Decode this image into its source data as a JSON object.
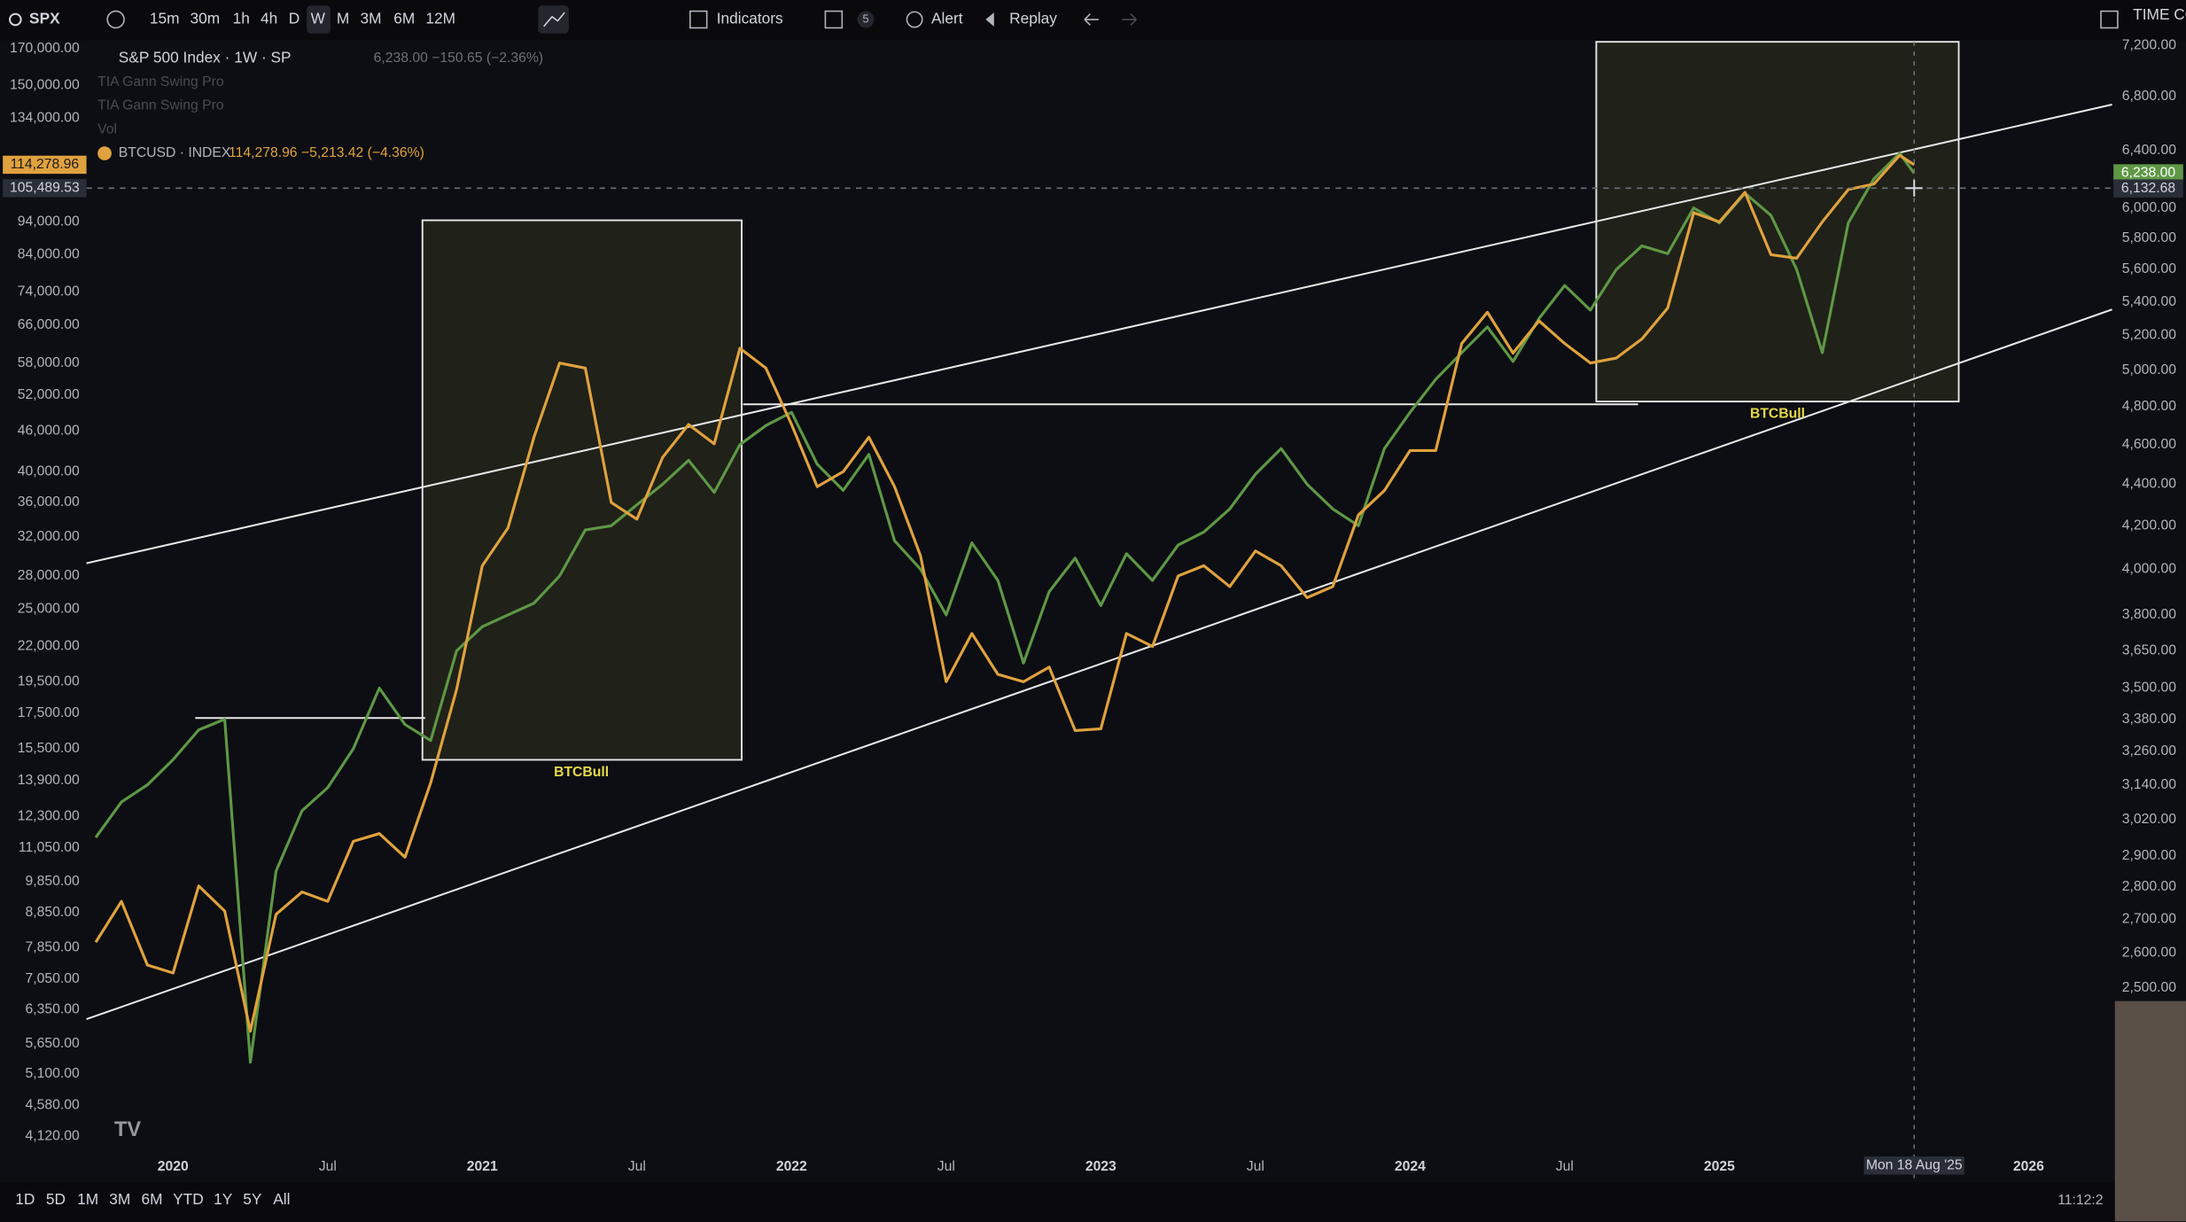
{
  "toolbar": {
    "symbol": "SPX",
    "intervals": [
      "15m",
      "30m",
      "1h",
      "4h",
      "D",
      "W",
      "M",
      "3M",
      "6M",
      "12M"
    ],
    "indicators": "Indicators",
    "badge": "5",
    "alert": "Alert",
    "replay": "Replay",
    "right_label": "TIME CO"
  },
  "legend": {
    "main_values": "6,238.00  −150.65 (−2.36%)",
    "indicators": [
      "TIA Gann Swing Pro",
      "TIA Gann Swing Pro",
      "Vol"
    ],
    "compare_values": "114,278.96  −5,213.42 (−4.36%)"
  },
  "chart_data": {
    "type": "line",
    "log_scale": true,
    "grid": false,
    "x": [
      2019.75,
      2019.833,
      2019.917,
      2020.0,
      2020.083,
      2020.167,
      2020.25,
      2020.333,
      2020.417,
      2020.5,
      2020.583,
      2020.667,
      2020.75,
      2020.833,
      2020.917,
      2021.0,
      2021.083,
      2021.167,
      2021.25,
      2021.333,
      2021.417,
      2021.5,
      2021.583,
      2021.667,
      2021.75,
      2021.833,
      2021.917,
      2022.0,
      2022.083,
      2022.167,
      2022.25,
      2022.333,
      2022.417,
      2022.5,
      2022.583,
      2022.667,
      2022.75,
      2022.833,
      2022.917,
      2023.0,
      2023.083,
      2023.167,
      2023.25,
      2023.333,
      2023.417,
      2023.5,
      2023.583,
      2023.667,
      2023.75,
      2023.833,
      2023.917,
      2024.0,
      2024.083,
      2024.167,
      2024.25,
      2024.333,
      2024.417,
      2024.5,
      2024.583,
      2024.667,
      2024.75,
      2024.833,
      2024.917,
      2025.0,
      2025.083,
      2025.167,
      2025.25,
      2025.333,
      2025.417,
      2025.5,
      2025.583,
      2025.63
    ],
    "xlim": [
      2019.72,
      2026.27
    ],
    "xticks": [
      2020,
      {
        "value": 2020.5,
        "label": "Jul"
      },
      2021,
      {
        "value": 2021.5,
        "label": "Jul"
      },
      2022,
      {
        "value": 2022.5,
        "label": "Jul"
      },
      2023,
      {
        "value": 2023.5,
        "label": "Jul"
      },
      2024,
      {
        "value": 2024.5,
        "label": "Jul"
      },
      2025,
      2026
    ],
    "ylim": [
      3520,
      174000
    ],
    "yticks": [
      {
        "value": 170000,
        "label": "170,000.00"
      },
      {
        "value": 150000,
        "label": "150,000.00"
      },
      {
        "value": 134000,
        "label": "134,000.00"
      },
      {
        "value": 94000,
        "label": "94,000.00"
      },
      {
        "value": 84000,
        "label": "84,000.00"
      },
      {
        "value": 74000,
        "label": "74,000.00"
      },
      {
        "value": 66000,
        "label": "66,000.00"
      },
      {
        "value": 58000,
        "label": "58,000.00"
      },
      {
        "value": 52000,
        "label": "52,000.00"
      },
      {
        "value": 46000,
        "label": "46,000.00"
      },
      {
        "value": 40000,
        "label": "40,000.00"
      },
      {
        "value": 36000,
        "label": "36,000.00"
      },
      {
        "value": 32000,
        "label": "32,000.00"
      },
      {
        "value": 28000,
        "label": "28,000.00"
      },
      {
        "value": 25000,
        "label": "25,000.00"
      },
      {
        "value": 22000,
        "label": "22,000.00"
      },
      {
        "value": 19500,
        "label": "19,500.00"
      },
      {
        "value": 17500,
        "label": "17,500.00"
      },
      {
        "value": 15500,
        "label": "15,500.00"
      },
      {
        "value": 13900,
        "label": "13,900.00"
      },
      {
        "value": 12300,
        "label": "12,300.00"
      },
      {
        "value": 11050,
        "label": "11,050.00"
      },
      {
        "value": 9850,
        "label": "9,850.00"
      },
      {
        "value": 8850,
        "label": "8,850.00"
      },
      {
        "value": 7850,
        "label": "7,850.00"
      },
      {
        "value": 7050,
        "label": "7,050.00"
      },
      {
        "value": 6350,
        "label": "6,350.00"
      },
      {
        "value": 5650,
        "label": "5,650.00"
      },
      {
        "value": 5100,
        "label": "5,100.00"
      },
      {
        "value": 4580,
        "label": "4,580.00"
      },
      {
        "value": 4120,
        "label": "4,120.00"
      }
    ],
    "y2lim": [
      2010,
      7230
    ],
    "y2ticks": [
      {
        "value": 7200,
        "label": "7,200.00"
      },
      {
        "value": 6800,
        "label": "6,800.00"
      },
      {
        "value": 6400,
        "label": "6,400.00"
      },
      {
        "value": 6000,
        "label": "6,000.00"
      },
      {
        "value": 5800,
        "label": "5,800.00"
      },
      {
        "value": 5600,
        "label": "5,600.00"
      },
      {
        "value": 5400,
        "label": "5,400.00"
      },
      {
        "value": 5200,
        "label": "5,200.00"
      },
      {
        "value": 5000,
        "label": "5,000.00"
      },
      {
        "value": 4800,
        "label": "4,800.00"
      },
      {
        "value": 4600,
        "label": "4,600.00"
      },
      {
        "value": 4400,
        "label": "4,400.00"
      },
      {
        "value": 4200,
        "label": "4,200.00"
      },
      {
        "value": 4000,
        "label": "4,000.00"
      },
      {
        "value": 3800,
        "label": "3,800.00"
      },
      {
        "value": 3650,
        "label": "3,650.00"
      },
      {
        "value": 3500,
        "label": "3,500.00"
      },
      {
        "value": 3380,
        "label": "3,380.00"
      },
      {
        "value": 3260,
        "label": "3,260.00"
      },
      {
        "value": 3140,
        "label": "3,140.00"
      },
      {
        "value": 3020,
        "label": "3,020.00"
      },
      {
        "value": 2900,
        "label": "2,900.00"
      },
      {
        "value": 2800,
        "label": "2,800.00"
      },
      {
        "value": 2700,
        "label": "2,700.00"
      },
      {
        "value": 2600,
        "label": "2,600.00"
      },
      {
        "value": 2500,
        "label": "2,500.00"
      }
    ],
    "series": [
      {
        "name": "S&P 500 Index · 1W · SP",
        "color": "#5e9845",
        "axis": "y2",
        "values": [
          2960,
          3080,
          3140,
          3230,
          3340,
          3380,
          2300,
          2850,
          3050,
          3130,
          3270,
          3500,
          3360,
          3300,
          3650,
          3750,
          3800,
          3850,
          3970,
          4180,
          4200,
          4300,
          4400,
          4520,
          4360,
          4600,
          4700,
          4770,
          4500,
          4370,
          4550,
          4130,
          4000,
          3800,
          4120,
          3950,
          3600,
          3900,
          4050,
          3840,
          4070,
          3950,
          4110,
          4170,
          4280,
          4450,
          4580,
          4400,
          4280,
          4200,
          4580,
          4770,
          4950,
          5100,
          5250,
          5050,
          5300,
          5500,
          5350,
          5600,
          5750,
          5700,
          6000,
          5900,
          6100,
          5950,
          5600,
          5100,
          5900,
          6200,
          6380,
          6238
        ]
      },
      {
        "name": "BTCUSD · INDEX",
        "color": "#e0a23e",
        "axis": "y",
        "values": [
          8000,
          9200,
          7400,
          7200,
          9700,
          8900,
          5900,
          8800,
          9500,
          9200,
          11300,
          11600,
          10700,
          13800,
          19000,
          29000,
          33000,
          45000,
          58000,
          57000,
          36000,
          34000,
          42000,
          47000,
          44000,
          61000,
          57000,
          47000,
          38000,
          40000,
          45000,
          38000,
          30000,
          19500,
          23000,
          20000,
          19500,
          20500,
          16500,
          16600,
          23000,
          22000,
          28000,
          29000,
          27000,
          30500,
          29000,
          26000,
          27000,
          34500,
          37500,
          43000,
          43000,
          62000,
          69000,
          60000,
          67000,
          62000,
          58000,
          59000,
          63000,
          70000,
          97000,
          94000,
          104000,
          84000,
          83000,
          94000,
          105000,
          107000,
          118000,
          114278.96
        ]
      }
    ],
    "annotations": [
      "BTCBull",
      "BTCBull"
    ],
    "price_labels": {
      "y": {
        "value": 114278.96,
        "label": "114,278.96"
      },
      "y2": {
        "value": 6238,
        "label": "6,238.00"
      }
    },
    "crosshair": {
      "x": {
        "value": 2025.63,
        "label": "Mon 18 Aug '25"
      },
      "y": {
        "value": 105489.53,
        "label": "105,489.53"
      },
      "y2": {
        "value": 6132.68,
        "label": "6,132.68"
      }
    }
  },
  "bottom_bar": {
    "ranges": [
      "1D",
      "5D",
      "1M",
      "3M",
      "6M",
      "YTD",
      "1Y",
      "5Y",
      "All"
    ],
    "clock": "11:12:2"
  }
}
